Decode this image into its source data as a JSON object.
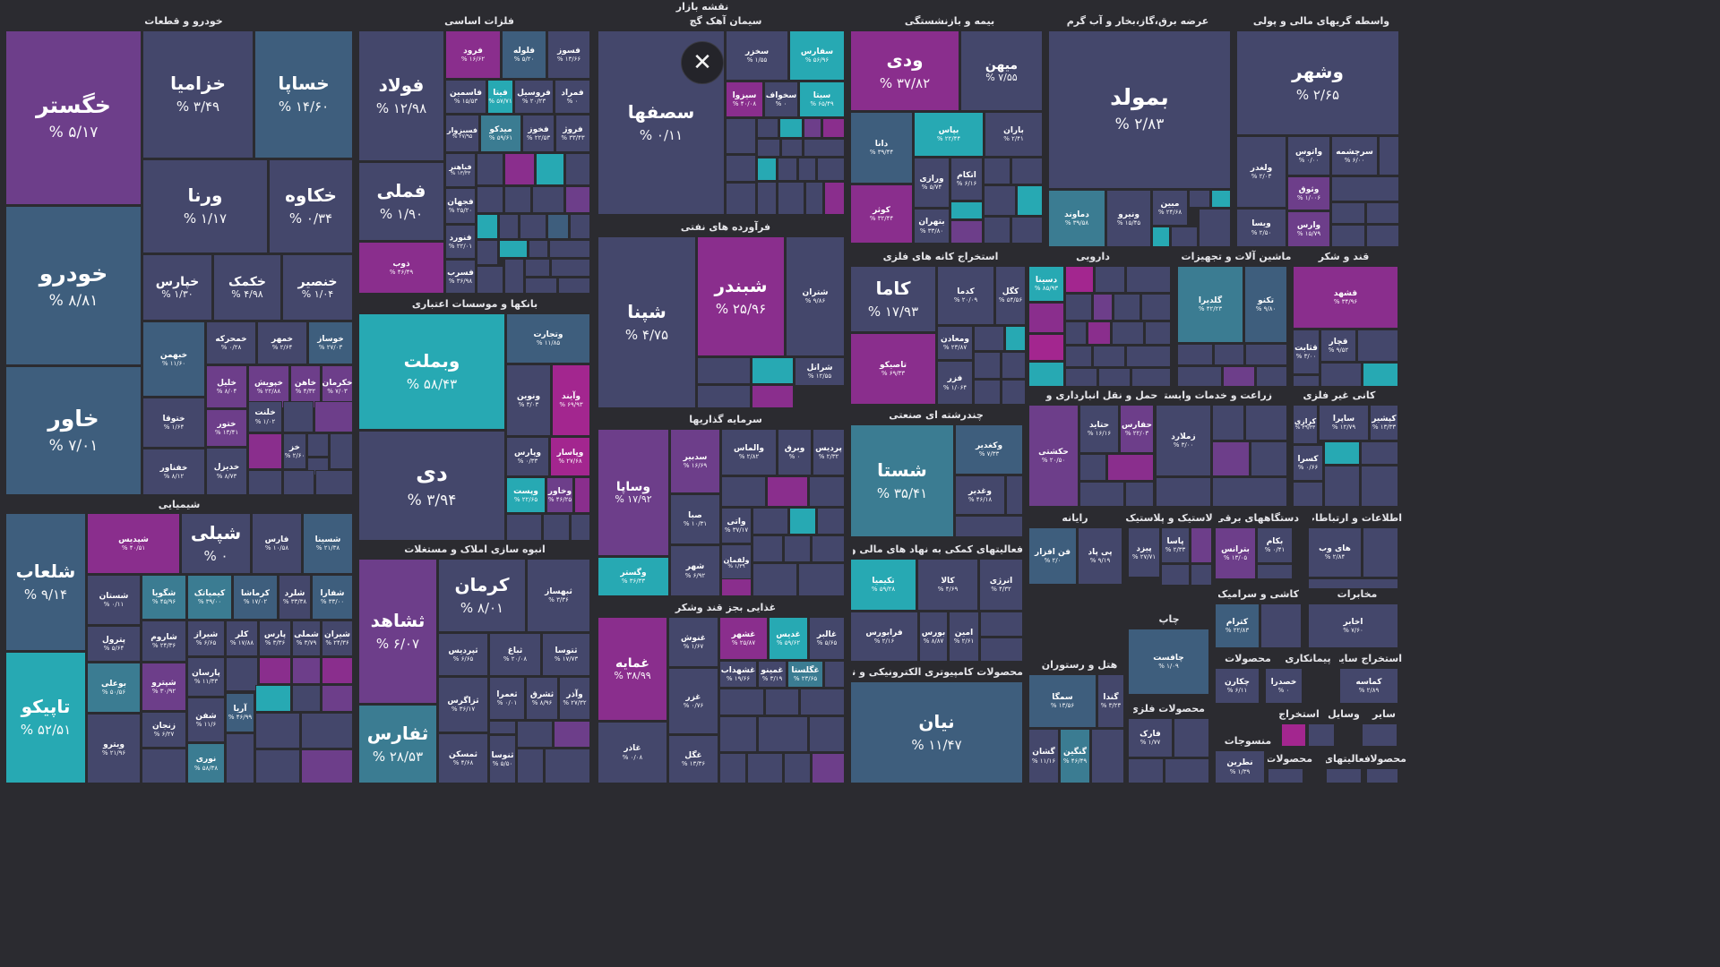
{
  "title": "نقشه بازار",
  "colors": {
    "background": "#2b2b30",
    "scale": [
      "#44476b",
      "#3e5e7d",
      "#3b7c92",
      "#27a9b3",
      "#6d3e8a",
      "#8a2e8d",
      "#a3268f"
    ]
  },
  "close_icon": "close-icon",
  "chart_data": {
    "type": "treemap",
    "title": "نقشه بازار",
    "sectors": [
      {
        "name": "خودرو و قطعات",
        "symbols": [
          {
            "name": "خگستر",
            "change": "۵/۱۷ %"
          },
          {
            "name": "خزامیا",
            "change": "۳/۴۹ %"
          },
          {
            "name": "خساپا",
            "change": "۱۴/۶۰ %"
          },
          {
            "name": "ورنا",
            "change": "۱/۱۷ %"
          },
          {
            "name": "خکاوه",
            "change": "۰/۳۴ %"
          },
          {
            "name": "خودرو",
            "change": "۸/۸۱ %"
          },
          {
            "name": "خپارس",
            "change": "۱/۳۰ %"
          },
          {
            "name": "خکمک",
            "change": "۴/۹۸ %"
          },
          {
            "name": "خنصیر",
            "change": "۱/۰۴ %"
          },
          {
            "name": "خبهمن",
            "change": "۱۱/۶۰ %"
          },
          {
            "name": "خمحرکه",
            "change": "۰/۲۸ %"
          },
          {
            "name": "خمهر",
            "change": "۲/۶۴ %"
          },
          {
            "name": "خوساز",
            "change": "۲۷/۰۳ %"
          },
          {
            "name": "خاور",
            "change": "۷/۰۱ %"
          },
          {
            "name": "خلیل",
            "change": "۸/۰۴ %"
          },
          {
            "name": "خپویش",
            "change": "۲۲/۸۸ %"
          },
          {
            "name": "خاهن",
            "change": "۴/۳۲ %"
          },
          {
            "name": "خکرمان",
            "change": "۷/۰۳ %"
          },
          {
            "name": "ختوقا",
            "change": "۱/۶۴ %"
          },
          {
            "name": "ختور",
            "change": "۱۳/۴۱ %"
          },
          {
            "name": "خلنت",
            "change": "۱/۰۲ %"
          },
          {
            "name": "خز",
            "change": "۲/۶۰ %"
          },
          {
            "name": "خفناور",
            "change": "۸/۱۲ %"
          },
          {
            "name": "خدیزل",
            "change": "۸/۷۳ %"
          }
        ]
      },
      {
        "name": "شیمیایی",
        "symbols": [
          {
            "name": "شلعاب",
            "change": "۹/۱۴ %"
          },
          {
            "name": "شپدیس",
            "change": "۴۰/۵۱ %"
          },
          {
            "name": "شپلی",
            "change": "۰ %"
          },
          {
            "name": "فارس",
            "change": "۱۰/۵۸ %"
          },
          {
            "name": "شسینا",
            "change": "۲۱/۳۸ %"
          },
          {
            "name": "شستان",
            "change": "۰/۱۱ %"
          },
          {
            "name": "شگویا",
            "change": "۴۵/۹۶ %"
          },
          {
            "name": "کیمیاتک",
            "change": "۳۹/۰۰ %"
          },
          {
            "name": "کرماشا",
            "change": "۱۷/۰۲ %"
          },
          {
            "name": "شلرد",
            "change": "۳۳/۳۸ %"
          },
          {
            "name": "شفارا",
            "change": "۳۳/۰۰ %"
          },
          {
            "name": "پترول",
            "change": "۵/۶۴ %"
          },
          {
            "name": "شاروم",
            "change": "۲۴/۳۶ %"
          },
          {
            "name": "شیراز",
            "change": "۶/۶۵ %"
          },
          {
            "name": "کلر",
            "change": "۱۷/۸۸ %"
          },
          {
            "name": "پارس",
            "change": "۳/۳۶ %"
          },
          {
            "name": "شملی",
            "change": "۳/۷۹ %"
          },
          {
            "name": "شیران",
            "change": "۲۴/۳۶ %"
          },
          {
            "name": "تاپیکو",
            "change": "۵۲/۵۱ %"
          },
          {
            "name": "بوعلی",
            "change": "۵۰/۵۶ %"
          },
          {
            "name": "شپترو",
            "change": "۳۰/۹۲ %"
          },
          {
            "name": "پارسان",
            "change": "۱۱/۳۳ %"
          },
          {
            "name": "آریا",
            "change": "۴۶/۹۹ %"
          },
          {
            "name": "شفن",
            "change": "۱۱/۶ %"
          },
          {
            "name": "ویترو",
            "change": "۲۱/۹۶ %"
          },
          {
            "name": "زنجان",
            "change": "۶/۲۷ %"
          },
          {
            "name": "نوری",
            "change": "۵۸/۳۸ %"
          }
        ]
      },
      {
        "name": "فلزات اساسی",
        "symbols": [
          {
            "name": "فولاد",
            "change": "۱۲/۹۸ %"
          },
          {
            "name": "فرود",
            "change": "۱۶/۶۲ %"
          },
          {
            "name": "فلوله",
            "change": "۵/۲۰ %"
          },
          {
            "name": "فسوز",
            "change": "۱۳/۶۶ %"
          },
          {
            "name": "فاسمین",
            "change": "۱۵/۵۳ %"
          },
          {
            "name": "فیتا",
            "change": "۵۷/۷۱ %"
          },
          {
            "name": "فروسیل",
            "change": "۲۰/۲۳ %"
          },
          {
            "name": "فمراد",
            "change": "۰ %"
          },
          {
            "name": "فسبزوار",
            "change": "۲۷/۹۵ %"
          },
          {
            "name": "میدکو",
            "change": "۵۹/۶۱ %"
          },
          {
            "name": "فخوز",
            "change": "۲۲/۵۳ %"
          },
          {
            "name": "فروژ",
            "change": "۳۳/۴۳ %"
          },
          {
            "name": "فملی",
            "change": "۱/۹۰ %"
          },
          {
            "name": "فباهنر",
            "change": "۱۳/۳۳ %"
          },
          {
            "name": "فجهان",
            "change": "۲۵/۲۰ %"
          },
          {
            "name": "فنورد",
            "change": "۲۲/۰۱ %"
          },
          {
            "name": "ذوب",
            "change": "۴۶/۴۹ %"
          },
          {
            "name": "فسرب",
            "change": "۳۶/۹۸ %"
          }
        ]
      },
      {
        "name": "بانکها و موسسات اعتباری",
        "symbols": [
          {
            "name": "وبملت",
            "change": "۵۸/۴۳ %"
          },
          {
            "name": "وتجارت",
            "change": "۱۱/۸۵ %"
          },
          {
            "name": "ونوین",
            "change": "۳/۰۳ %"
          },
          {
            "name": "وآیند",
            "change": "۶۹/۹۳ %"
          },
          {
            "name": "دی",
            "change": "۳/۹۴ %"
          },
          {
            "name": "وپارس",
            "change": "۰/۳۳ %"
          },
          {
            "name": "وپاسار",
            "change": "۲۷/۶۸ %"
          },
          {
            "name": "وپست",
            "change": "۲۲/۶۵ %"
          },
          {
            "name": "وخاور",
            "change": "۴۶/۲۵ %"
          }
        ]
      },
      {
        "name": "انبوه سازی املاک و مستغلات",
        "symbols": [
          {
            "name": "ثشاهد",
            "change": "۶/۰۷ %"
          },
          {
            "name": "کرمان",
            "change": "۸/۰۱ %"
          },
          {
            "name": "ثبهساز",
            "change": "۳/۳۶ %"
          },
          {
            "name": "ثپردیس",
            "change": "۶/۶۵ %"
          },
          {
            "name": "ثباغ",
            "change": "۲۰/۰۸ %"
          },
          {
            "name": "ثتوسا",
            "change": "۱۷/۷۳ %"
          },
          {
            "name": "ثفارس",
            "change": "۲۸/۵۳ %"
          },
          {
            "name": "ثزاگرس",
            "change": "۳۶/۱۷ %"
          },
          {
            "name": "ثعمرا",
            "change": "۰/۰۱ %"
          },
          {
            "name": "ثشرق",
            "change": "۸/۹۶ %"
          },
          {
            "name": "وآذر",
            "change": "۲۷/۳۲ %"
          },
          {
            "name": "ثمسکن",
            "change": "۴/۶۸ %"
          },
          {
            "name": "ثنوسا",
            "change": "۵/۵۰ %"
          }
        ]
      },
      {
        "name": "سیمان آهک گچ",
        "symbols": [
          {
            "name": "سصفها",
            "change": "۰/۱۱ %"
          },
          {
            "name": "سخزر",
            "change": "۱/۵۵ %"
          },
          {
            "name": "سفارس",
            "change": "۵۶/۹۶ %"
          },
          {
            "name": "سیزوا",
            "change": "۴۰/۰۸ %"
          },
          {
            "name": "سخواف",
            "change": "۰ %"
          },
          {
            "name": "سیتا",
            "change": "۶۵/۴۹ %"
          }
        ]
      },
      {
        "name": "فرآورده های نفتی",
        "symbols": [
          {
            "name": "شپنا",
            "change": "۴/۷۵ %"
          },
          {
            "name": "شبندر",
            "change": "۲۵/۹۶ %"
          },
          {
            "name": "شتران",
            "change": "۹/۸۶ %"
          },
          {
            "name": "شرانل",
            "change": "۱۲/۵۵ %"
          }
        ]
      },
      {
        "name": "سرمایه گذاریها",
        "symbols": [
          {
            "name": "وساپا",
            "change": "۱۷/۹۲ %"
          },
          {
            "name": "سدبیر",
            "change": "۱۶/۶۹ %"
          },
          {
            "name": "والماس",
            "change": "۲/۸۲ %"
          },
          {
            "name": "وبرق",
            "change": "۰ %"
          },
          {
            "name": "پردیس",
            "change": "۲/۳۲ %"
          },
          {
            "name": "صبا",
            "change": "۱۰/۳۱ %"
          },
          {
            "name": "واتی",
            "change": "۳۷/۱۷ %"
          },
          {
            "name": "ولقمان",
            "change": "۱/۳۹ %"
          },
          {
            "name": "وگستر",
            "change": "۳۶/۳۳ %"
          },
          {
            "name": "شهر",
            "change": "۶/۹۲ %"
          }
        ]
      },
      {
        "name": "غذایی بجز قند وشکر",
        "symbols": [
          {
            "name": "غمایه",
            "change": "۳۸/۹۹ %"
          },
          {
            "name": "غنوش",
            "change": "۱/۶۷ %"
          },
          {
            "name": "غشهر",
            "change": "۲۵/۸۷ %"
          },
          {
            "name": "غدیس",
            "change": "۵۹/۶۲ %"
          },
          {
            "name": "غالبر",
            "change": "۵/۶۵ %"
          },
          {
            "name": "غشهداب",
            "change": "۱۹/۶۶ %"
          },
          {
            "name": "غمینو",
            "change": "۳/۱۹ %"
          },
          {
            "name": "غگلستا",
            "change": "۲۳/۶۵ %"
          },
          {
            "name": "غزر",
            "change": "۰/۷۶ %"
          },
          {
            "name": "غاذر",
            "change": "۰/۰۸ %"
          },
          {
            "name": "غگل",
            "change": "۱۳/۳۶ %"
          }
        ]
      },
      {
        "name": "بیمه و بازنشستگی",
        "symbols": [
          {
            "name": "ودی",
            "change": "۳۷/۸۲ %"
          },
          {
            "name": "میهن",
            "change": "۷/۵۵ %"
          },
          {
            "name": "دانا",
            "change": "۳۹/۴۴ %"
          },
          {
            "name": "بپاس",
            "change": "۲۲/۴۴ %"
          },
          {
            "name": "باران",
            "change": "۲/۴۱ %"
          },
          {
            "name": "ورازی",
            "change": "۵/۷۴ %"
          },
          {
            "name": "اتکام",
            "change": "۶/۱۶ %"
          },
          {
            "name": "کوثر",
            "change": "۳۲/۴۴ %"
          },
          {
            "name": "بتهران",
            "change": "۳۳/۸۰ %"
          }
        ]
      },
      {
        "name": "عرضه برق،گاز،بخار و آب گرم",
        "symbols": [
          {
            "name": "بمولد",
            "change": "۲/۸۳ %"
          },
          {
            "name": "دماوند",
            "change": "۳۹/۵۸ %"
          },
          {
            "name": "ونیرو",
            "change": "۱۵/۴۵ %"
          },
          {
            "name": "مبین",
            "change": "۲۴/۶۸ %"
          }
        ]
      },
      {
        "name": "واسطه گریهای مالی و پولی",
        "symbols": [
          {
            "name": "وشهر",
            "change": "۲/۶۵ %"
          },
          {
            "name": "ولغدر",
            "change": "۲/۰۳ %"
          },
          {
            "name": "واتوس",
            "change": "۰/۰۰ %"
          },
          {
            "name": "سرچشمه",
            "change": "۶/۰۰ %"
          },
          {
            "name": "وثوق",
            "change": "۱/۰۰۶ %"
          },
          {
            "name": "ویسا",
            "change": "۲/۵۰ %"
          },
          {
            "name": "وارس",
            "change": "۱۵/۷۹ %"
          }
        ]
      },
      {
        "name": "استخراج کانه های فلزی",
        "symbols": [
          {
            "name": "کاما",
            "change": "۱۷/۹۳ %"
          },
          {
            "name": "کدما",
            "change": "۲۰/۰۹ %"
          },
          {
            "name": "کگل",
            "change": "۵۴/۵۶ %"
          },
          {
            "name": "ومعادن",
            "change": "۲۳/۸۷ %"
          },
          {
            "name": "تاصیکو",
            "change": "۶۹/۳۳ %"
          },
          {
            "name": "فزر",
            "change": "۱/۰۶۴ %"
          }
        ]
      },
      {
        "name": "چندرشته ای صنعتی",
        "symbols": [
          {
            "name": "شستا",
            "change": "۳۵/۴۱ %"
          },
          {
            "name": "وکغدیر",
            "change": "۷/۳۳ %"
          },
          {
            "name": "وغدیر",
            "change": "۴۶/۱۸ %"
          }
        ]
      },
      {
        "name": "فعالیتهای کمکی به نهاد های مالی واسط",
        "symbols": [
          {
            "name": "تکیمیا",
            "change": "۵۹/۲۸ %"
          },
          {
            "name": "کالا",
            "change": "۴/۶۹ %"
          },
          {
            "name": "انرژی",
            "change": "۴/۳۲ %"
          },
          {
            "name": "فرابورس",
            "change": "۲/۱۶ %"
          },
          {
            "name": "بورس",
            "change": "۸/۸۷ %"
          },
          {
            "name": "امین",
            "change": "۲/۶۱ %"
          }
        ]
      },
      {
        "name": "محصولات کامپیوتری الکترونیکی و نوری",
        "symbols": [
          {
            "name": "نیان",
            "change": "۱۱/۴۷ %"
          }
        ]
      },
      {
        "name": "دارویی",
        "symbols": [
          {
            "name": "دسینا",
            "change": "۸۵/۹۳ %"
          }
        ]
      },
      {
        "name": "ماشین آلات و تجهیزات",
        "symbols": [
          {
            "name": "گلدیرا",
            "change": "۴۲/۲۳ %"
          },
          {
            "name": "تکنو",
            "change": "۹/۸۰ %"
          }
        ]
      },
      {
        "name": "قند و شکر",
        "symbols": [
          {
            "name": "قشهد",
            "change": "۳۴/۹۶ %"
          },
          {
            "name": "قثابت",
            "change": "۳/۰۰ %"
          },
          {
            "name": "قچار",
            "change": "۹/۵۲ %"
          }
        ]
      },
      {
        "name": "حمل و نقل انبارداری و",
        "symbols": [
          {
            "name": "حکشتی",
            "change": "۲۰/۵۰ %"
          },
          {
            "name": "حتاید",
            "change": "۱۶/۱۶ %"
          },
          {
            "name": "حفارس",
            "change": "۲۲/۰۳ %"
          }
        ]
      },
      {
        "name": "زراعت و خدمات وابسته",
        "symbols": [
          {
            "name": "زملارد",
            "change": "۳/۰۰ %"
          }
        ]
      },
      {
        "name": "کانی غیر فلزی",
        "symbols": [
          {
            "name": "کرازی",
            "change": "۳۹/۳۳ %"
          },
          {
            "name": "ساپرا",
            "change": "۱۲/۷۹ %"
          },
          {
            "name": "کپشیر",
            "change": "۱۳/۳۳ %"
          },
          {
            "name": "کسرا",
            "change": "۰/۶۶ %"
          }
        ]
      },
      {
        "name": "رایانه",
        "symbols": [
          {
            "name": "فن افزار",
            "change": "۲/۰ %"
          },
          {
            "name": "پی پاد",
            "change": "۹/۱۹ %"
          }
        ]
      },
      {
        "name": "لاستیک و پلاستیک",
        "symbols": [
          {
            "name": "پیزد",
            "change": "۲۷/۷۱ %"
          },
          {
            "name": "پاسا",
            "change": "۲/۳۳ %"
          }
        ]
      },
      {
        "name": "دستگاههای برقی",
        "symbols": [
          {
            "name": "بترانس",
            "change": "۱۳/۰۵ %"
          },
          {
            "name": "بکام",
            "change": "۰/۴۱ %"
          }
        ]
      },
      {
        "name": "اطلاعات و ارتباطات",
        "symbols": [
          {
            "name": "های وب",
            "change": "۲/۸۴ %"
          }
        ]
      },
      {
        "name": "کاشی و سرامیک",
        "symbols": [
          {
            "name": "کترام",
            "change": "۲۲/۸۳ %"
          }
        ]
      },
      {
        "name": "مخابرات",
        "symbols": [
          {
            "name": "اخابر",
            "change": "۷/۶۰ %"
          }
        ]
      },
      {
        "name": "چاپ",
        "symbols": [
          {
            "name": "چافست",
            "change": "۱/۰۹ %"
          }
        ]
      },
      {
        "name": "هتل و رستوران",
        "symbols": [
          {
            "name": "سمگا",
            "change": "۱۳/۵۶ %"
          },
          {
            "name": "گندا",
            "change": "۳/۲۳ %"
          },
          {
            "name": "گشان",
            "change": "۱۱/۱۶ %"
          },
          {
            "name": "گنگین",
            "change": "۴۶/۴۹ %"
          }
        ]
      },
      {
        "name": "محصولات فلزی",
        "symbols": [
          {
            "name": "فارک",
            "change": "۱/۷۷ %"
          }
        ]
      },
      {
        "name": "محصولات",
        "symbols": [
          {
            "name": "چکارن",
            "change": "۶/۱۱ %"
          }
        ]
      },
      {
        "name": "پیمانکاری",
        "symbols": [
          {
            "name": "خصدرا",
            "change": "۰ %"
          }
        ]
      },
      {
        "name": "استخراج سایر",
        "symbols": [
          {
            "name": "کماسه",
            "change": "۲/۸۹ %"
          }
        ]
      },
      {
        "name": "استخراج",
        "symbols": []
      },
      {
        "name": "وسایل",
        "symbols": []
      },
      {
        "name": "سایر",
        "symbols": []
      },
      {
        "name": "منسوجات",
        "symbols": [
          {
            "name": "نطرین",
            "change": "۱/۳۹ %"
          }
        ]
      },
      {
        "name": "محصولات",
        "symbols": []
      },
      {
        "name": "فعالیتهای",
        "symbols": []
      },
      {
        "name": "محصولا",
        "symbols": []
      }
    ]
  }
}
